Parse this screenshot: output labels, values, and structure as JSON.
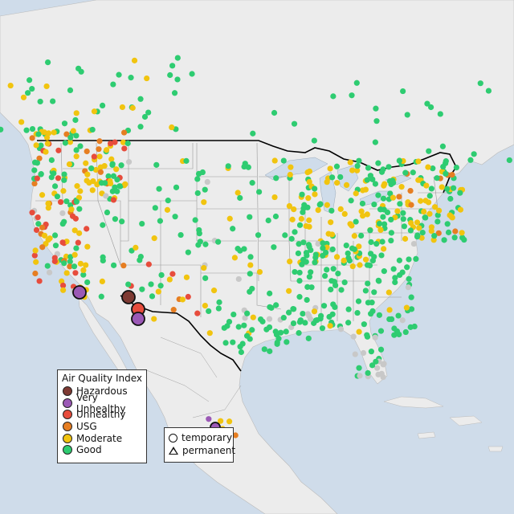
{
  "legend": {
    "title": "Air Quality Index",
    "categories": [
      {
        "key": "hazardous",
        "label": "Hazardous",
        "color": "#7e3a33"
      },
      {
        "key": "very_unhealthy",
        "label": "Very Unhealthy",
        "color": "#9b59b6"
      },
      {
        "key": "unhealthy",
        "label": "Unhealthy",
        "color": "#e74c3c"
      },
      {
        "key": "usg",
        "label": "USG",
        "color": "#e67e22"
      },
      {
        "key": "moderate",
        "label": "Moderate",
        "color": "#f1c40f"
      },
      {
        "key": "good",
        "label": "Good",
        "color": "#2ecc71"
      }
    ]
  },
  "type_legend": {
    "temporary": "temporary",
    "permanent": "permanent"
  },
  "colors": {
    "water": "#cfdcea",
    "land": "#ececec",
    "no_data": "#c8c8c8",
    "marker_outline": "#111111"
  },
  "icons": {
    "temporary": "circle-icon",
    "permanent": "triangle-icon"
  }
}
